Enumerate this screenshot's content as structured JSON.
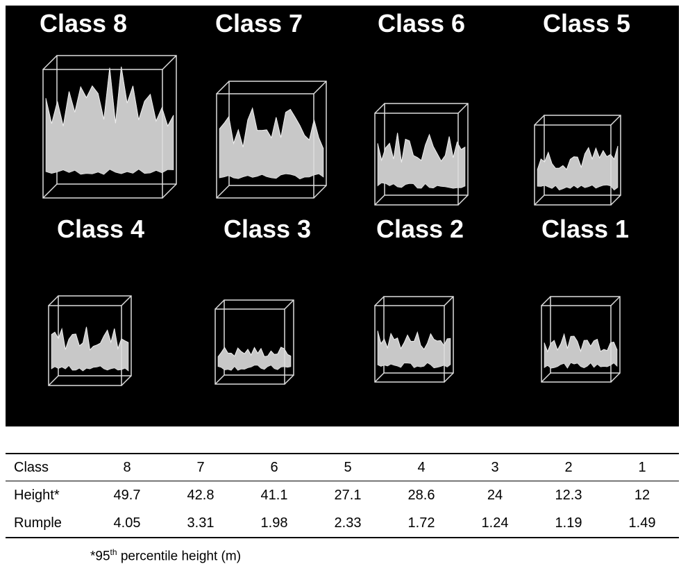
{
  "panels": [
    "Class 8",
    "Class 7",
    "Class 6",
    "Class 5",
    "Class 4",
    "Class 3",
    "Class 2",
    "Class 1"
  ],
  "table": {
    "rows": [
      [
        "Class",
        8,
        7,
        6,
        5,
        4,
        3,
        2,
        1
      ],
      [
        "Height*",
        49.7,
        42.8,
        41.1,
        27.1,
        28.6,
        24,
        12.3,
        12
      ],
      [
        "Rumple",
        4.05,
        3.31,
        1.98,
        2.33,
        1.72,
        1.24,
        1.19,
        1.49
      ]
    ]
  },
  "footnote": {
    "prefix": "*95",
    "superscript": "th",
    "suffix": " percentile height (m)"
  }
}
